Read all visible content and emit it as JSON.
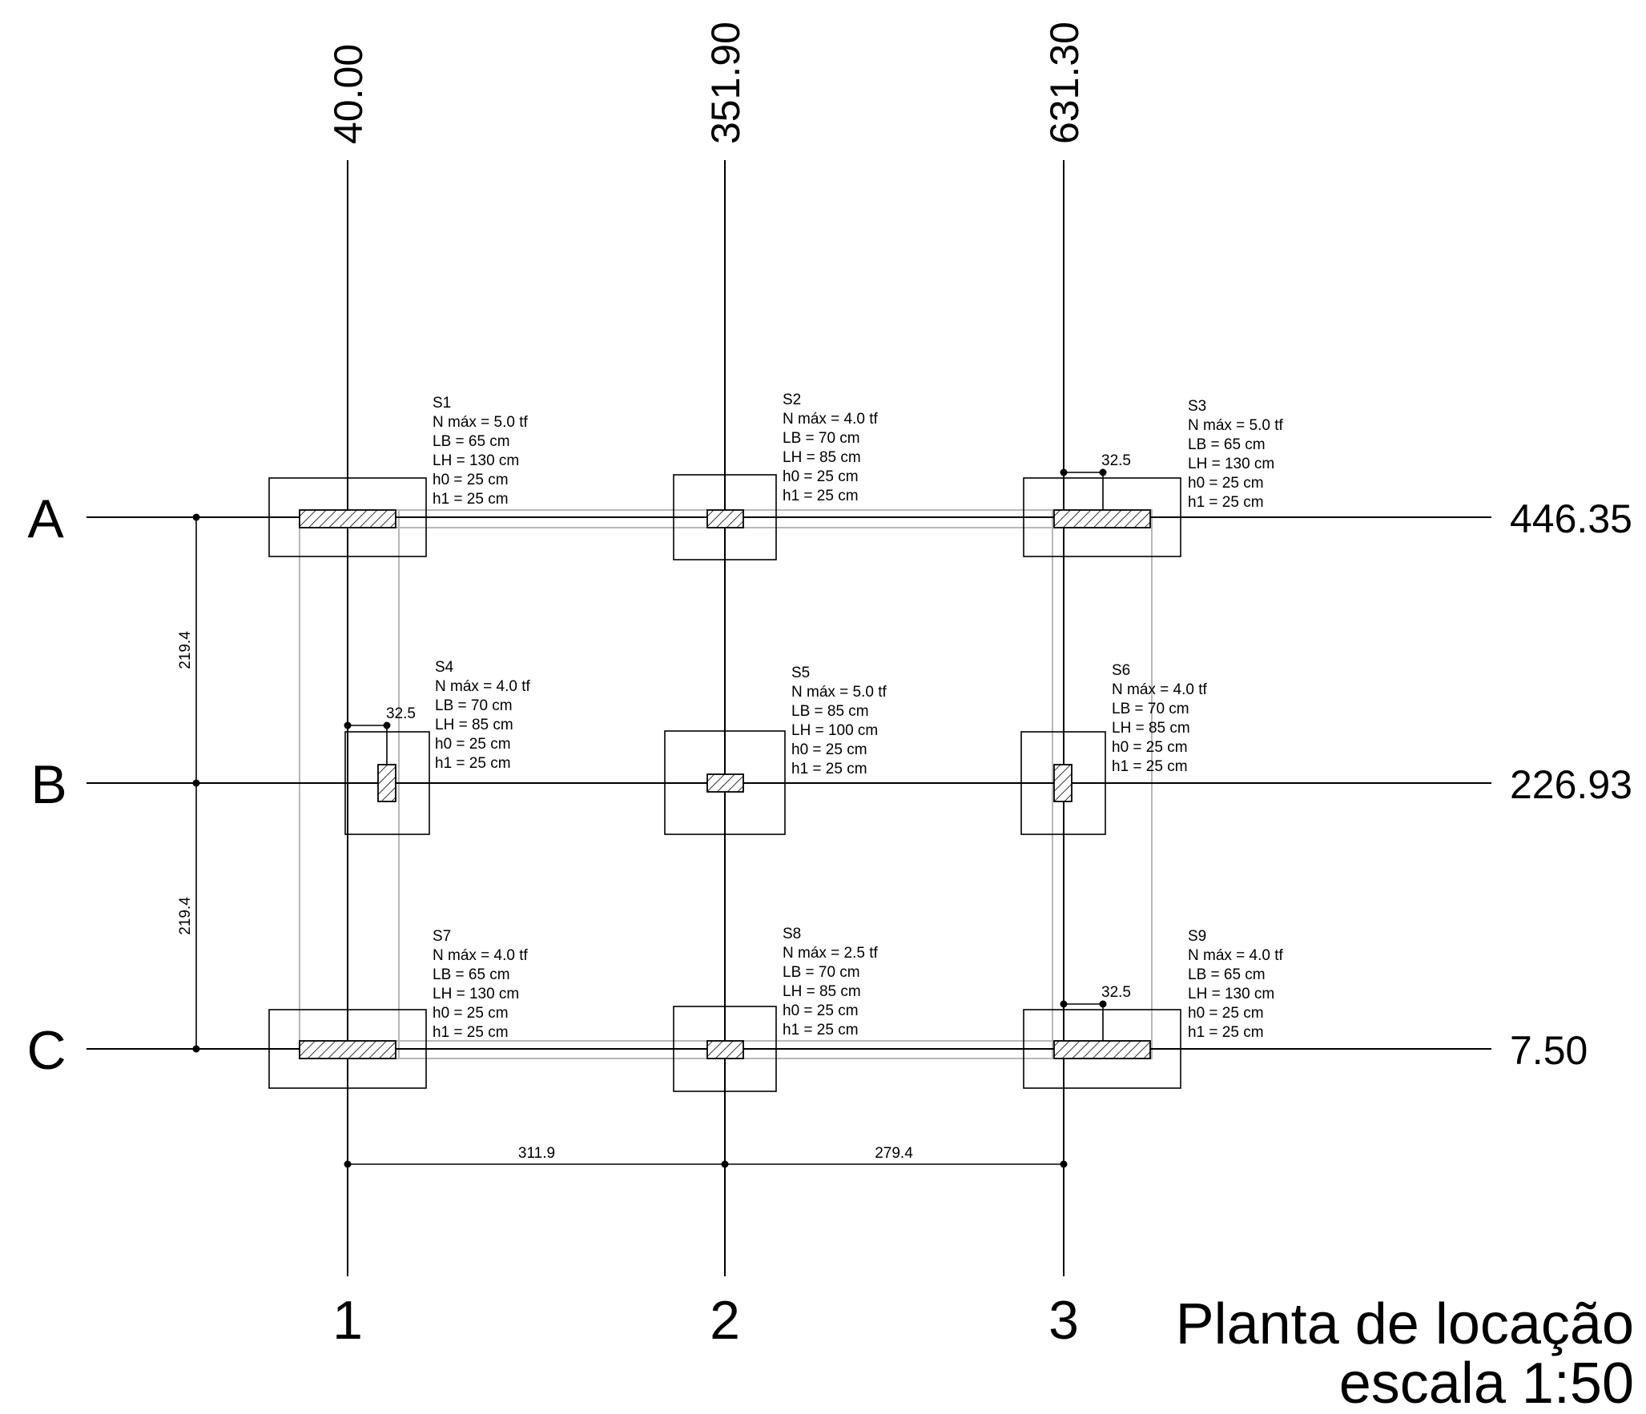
{
  "drawing": {
    "title_line1": "Planta de locação",
    "title_line2": "escala 1:50"
  },
  "axes_vertical": [
    {
      "name": "1",
      "coord": "40.00"
    },
    {
      "name": "2",
      "coord": "351.90"
    },
    {
      "name": "3",
      "coord": "631.30"
    }
  ],
  "axes_horizontal": [
    {
      "name": "A",
      "coord": "446.35"
    },
    {
      "name": "B",
      "coord": "226.93"
    },
    {
      "name": "C",
      "coord": "7.50"
    }
  ],
  "dimensions": {
    "h_1_2": "311.9",
    "h_2_3": "279.4",
    "v_A_B": "219.4",
    "v_B_C": "219.4",
    "offset_S3": "32.5",
    "offset_S4": "32.5",
    "offset_S9": "32.5"
  },
  "footings": [
    {
      "id": "S1",
      "info": [
        "S1",
        "N máx = 5.0 tf",
        "LB = 65 cm",
        "LH = 130 cm",
        "h0 = 25 cm",
        "h1 = 25 cm"
      ]
    },
    {
      "id": "S2",
      "info": [
        "S2",
        "N máx = 4.0 tf",
        "LB = 70 cm",
        "LH = 85 cm",
        "h0 = 25 cm",
        "h1 = 25 cm"
      ]
    },
    {
      "id": "S3",
      "info": [
        "S3",
        "N máx = 5.0 tf",
        "LB = 65 cm",
        "LH = 130 cm",
        "h0 = 25 cm",
        "h1 = 25 cm"
      ]
    },
    {
      "id": "S4",
      "info": [
        "S4",
        "N máx = 4.0 tf",
        "LB = 70 cm",
        "LH = 85 cm",
        "h0 = 25 cm",
        "h1 = 25 cm"
      ]
    },
    {
      "id": "S5",
      "info": [
        "S5",
        "N máx = 5.0 tf",
        "LB = 85 cm",
        "LH = 100 cm",
        "h0 = 25 cm",
        "h1 = 25 cm"
      ]
    },
    {
      "id": "S6",
      "info": [
        "S6",
        "N máx = 4.0 tf",
        "LB = 70 cm",
        "LH = 85 cm",
        "h0 = 25 cm",
        "h1 = 25 cm"
      ]
    },
    {
      "id": "S7",
      "info": [
        "S7",
        "N máx = 4.0 tf",
        "LB = 65 cm",
        "LH = 130 cm",
        "h0 = 25 cm",
        "h1 = 25 cm"
      ]
    },
    {
      "id": "S8",
      "info": [
        "S8",
        "N máx = 2.5 tf",
        "LB = 70 cm",
        "LH = 85 cm",
        "h0 = 25 cm",
        "h1 = 25 cm"
      ]
    },
    {
      "id": "S9",
      "info": [
        "S9",
        "N máx = 4.0 tf",
        "LB = 65 cm",
        "LH = 130 cm",
        "h0 = 25 cm",
        "h1 = 25 cm"
      ]
    }
  ]
}
